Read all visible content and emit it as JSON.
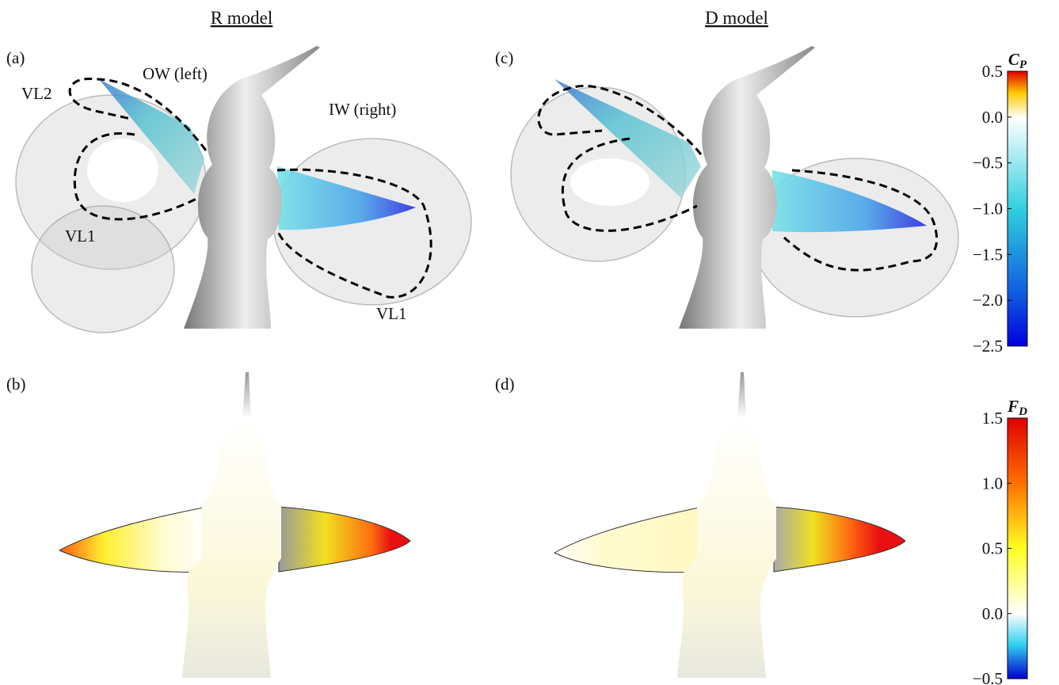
{
  "columns": [
    "R model",
    "D model"
  ],
  "panel_labels": [
    "(a)",
    "(b)",
    "(c)",
    "(d)"
  ],
  "annotations": [
    "OW (left)",
    "VL2",
    "VL1",
    "IW (right)",
    "VL1"
  ],
  "colorbars": [
    {
      "symbol": "C",
      "subscript": "P",
      "ticks": [
        {
          "value": 0.5,
          "label": "0.5"
        },
        {
          "value": 0,
          "label": "0.0"
        },
        {
          "value": -0.5,
          "label": "−0.5"
        },
        {
          "value": -1,
          "label": "−1.0"
        },
        {
          "value": -1.5,
          "label": "−1.5"
        },
        {
          "value": -2,
          "label": "−2.0"
        },
        {
          "value": -2.5,
          "label": "−2.5"
        }
      ]
    },
    {
      "symbol": "F",
      "subscript": "D",
      "ticks": [
        {
          "value": 1.5,
          "label": "1.5"
        },
        {
          "value": 1,
          "label": "1.0"
        },
        {
          "value": 0.5,
          "label": "0.5"
        },
        {
          "value": 0,
          "label": "0.0"
        },
        {
          "value": -0.5,
          "label": "−0.5"
        }
      ]
    }
  ]
}
